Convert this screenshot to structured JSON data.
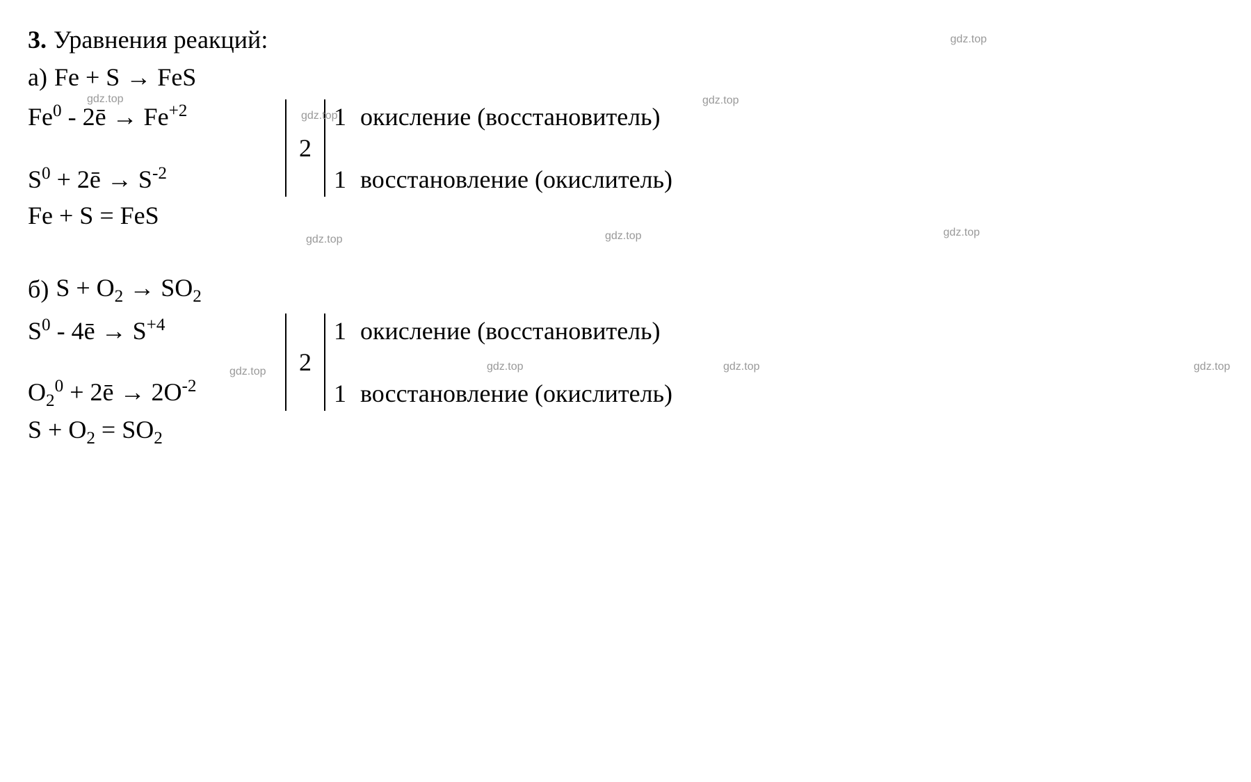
{
  "problem": {
    "number": "3.",
    "title": "Уравнения реакций:"
  },
  "watermarks": {
    "w1": "gdz.top",
    "w2": "gdz.top",
    "w3": "gdz.top",
    "w4": "gdz.top",
    "w5": "gdz.top",
    "w6": "gdz.top",
    "w7": "gdz.top",
    "w8": "gdz.top",
    "w9": "gdz.top",
    "w10": "gdz.top"
  },
  "partA": {
    "label": "а)",
    "equation_html": "Fe + S → FeS",
    "balance1_html": "Fe<sup>0</sup> - 2ē → Fe<sup>+2</sup>",
    "balance2_html": "S<sup>0</sup> + 2ē → S<sup>-2</sup>",
    "middle_number": "2",
    "right1": "1",
    "desc1": "окисление (восстановитель)",
    "right2": "1",
    "desc2": "восстановление (окислитель)",
    "final": "Fe + S = FeS"
  },
  "partB": {
    "label": "б)",
    "equation_html": "S + O<sub>2</sub> → SO<sub>2</sub>",
    "balance1_html": "S<sup>0</sup> - 4ē → S<sup>+4</sup>",
    "balance2_html": "O<sub>2</sub><sup>0</sup> + 2ē → 2O<sup>-2</sup>",
    "middle_number": "2",
    "right1": "1",
    "desc1": "окисление (восстановитель)",
    "right2": "1",
    "desc2": "восстановление (окислитель)",
    "final": "S + O<sub>2</sub> = SO<sub>2</sub>"
  },
  "style": {
    "font_family": "Times New Roman",
    "font_size_main": 36,
    "font_size_watermark": 16,
    "text_color": "#000000",
    "watermark_color": "#999999",
    "background_color": "#ffffff",
    "bar_color": "#000000"
  }
}
